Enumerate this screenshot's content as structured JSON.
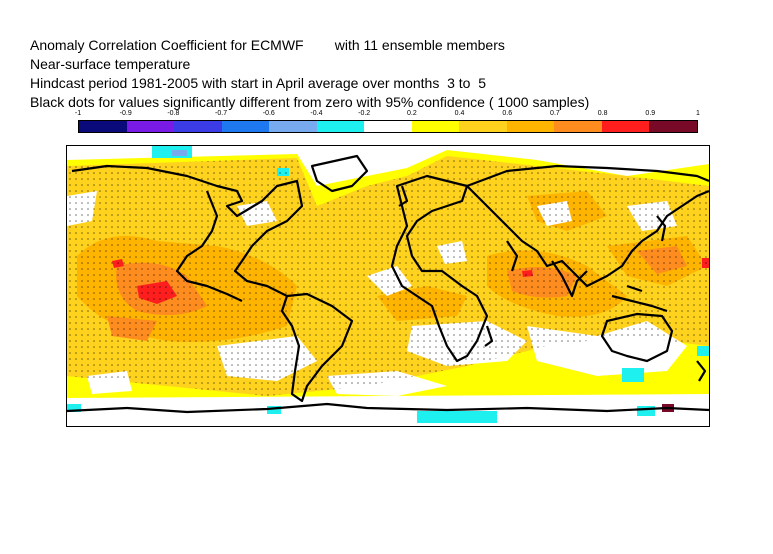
{
  "header": {
    "lines": [
      "Anomaly Correlation Coefficient for ECMWF        with 11 ensemble members",
      "Near-surface temperature",
      "Hindcast period 1981-2005 with start in April average over months  3 to  5",
      "Black dots for values significantly different from zero with 95% confidence ( 1000 samples)"
    ]
  },
  "colorbar": {
    "tick_labels": [
      "-1",
      "-0.9",
      "-0.8",
      "-0.7",
      "-0.6",
      "-0.4",
      "-0.2",
      "0.2",
      "0.4",
      "0.6",
      "0.7",
      "0.8",
      "0.9",
      "1"
    ],
    "colors": [
      "#0a0a7a",
      "#7a1ae6",
      "#3c3ce6",
      "#1e78f0",
      "#78aaf0",
      "#1ef0f0",
      "#ffffff",
      "#ffff00",
      "#ffd21e",
      "#ffb400",
      "#ff8c1e",
      "#ff1e1e",
      "#780a28"
    ]
  },
  "map": {
    "projection": "equirectangular global",
    "field": "anomaly correlation coefficient",
    "dominant_colors": [
      "#ffff00",
      "#ffd21e",
      "#ffb400",
      "#ff8c1e",
      "#ff1e1e",
      "#1ef0f0",
      "#ffffff"
    ],
    "coastline_color": "#000000",
    "significance_marker_color": "#000000"
  }
}
